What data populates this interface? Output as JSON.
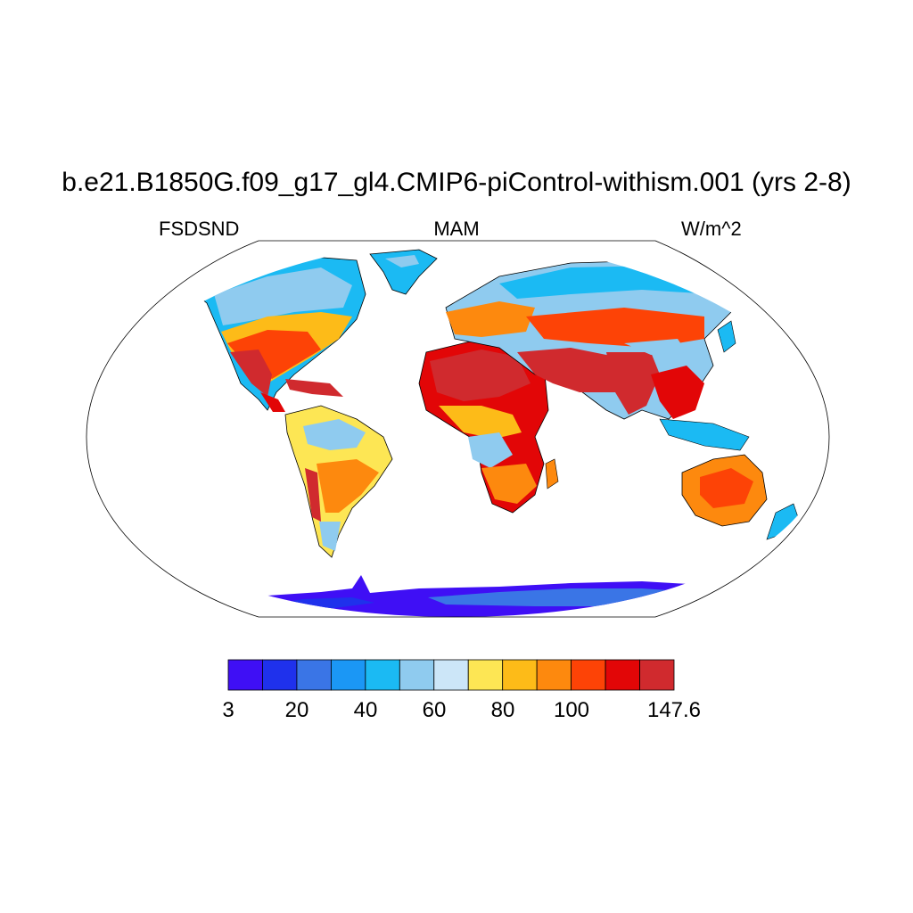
{
  "title": "b.e21.B1850G.f09_g17_gl4.CMIP6-piControl-withism.001 (yrs 2-8)",
  "variable": "FSDSND",
  "season": "MAM",
  "units": "W/m^2",
  "colorbar": {
    "colors": [
      "#3f0ff5",
      "#1f31ec",
      "#3a75e6",
      "#1b97f5",
      "#1bbaf3",
      "#8fcbef",
      "#cce6f8",
      "#fde654",
      "#fdbb18",
      "#fd890e",
      "#fd4306",
      "#e20607",
      "#d02a2e"
    ],
    "tick_labels": [
      "3",
      "20",
      "40",
      "60",
      "80",
      "100",
      "147.6"
    ]
  },
  "map_colors": {
    "ocean": "#ffffff",
    "coast": "#000000",
    "antarctica": "#3f0ff5",
    "greenland": "#1bbaf3"
  }
}
